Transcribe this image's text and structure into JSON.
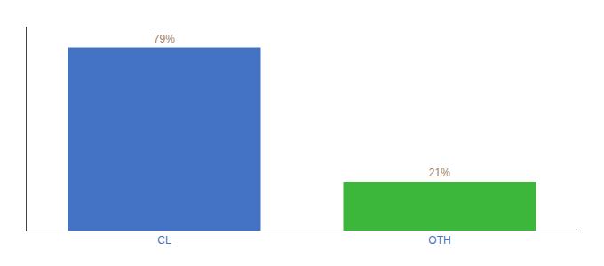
{
  "chart_data": {
    "type": "bar",
    "categories": [
      "CL",
      "OTH"
    ],
    "values": [
      79,
      21
    ],
    "value_labels": [
      "79%",
      "21%"
    ],
    "colors": [
      "#4472c4",
      "#3cb73c"
    ],
    "ylim": [
      0,
      88
    ],
    "data_labels": true,
    "tick_labels": "x",
    "grid": false
  }
}
